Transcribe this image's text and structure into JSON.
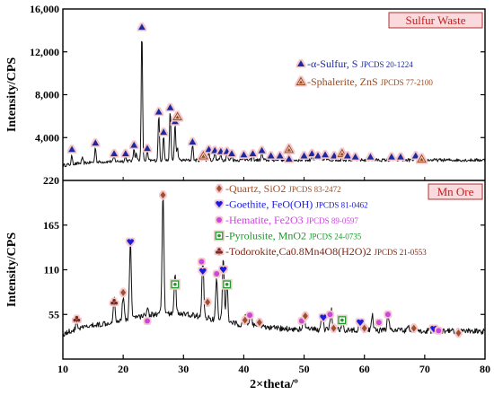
{
  "chart_data": {
    "type": "line",
    "xlabel": "2×theta/º",
    "xlim": [
      10,
      80
    ],
    "x_ticks": [
      "10",
      "20",
      "30",
      "40",
      "50",
      "60",
      "70",
      "80"
    ],
    "panels": [
      {
        "name": "Sulfur Waste",
        "ylabel": "Intensity/CPS",
        "ylim": [
          0,
          16000
        ],
        "y_ticks": [
          "16,000",
          "12,000",
          "8,000",
          "4,000"
        ],
        "baseline": 1900,
        "peaks": [
          {
            "x": 11.5,
            "y": 800
          },
          {
            "x": 13.2,
            "y": 500
          },
          {
            "x": 15.4,
            "y": 1400
          },
          {
            "x": 18.5,
            "y": 400
          },
          {
            "x": 20.4,
            "y": 450
          },
          {
            "x": 21.8,
            "y": 1200
          },
          {
            "x": 22.2,
            "y": 700
          },
          {
            "x": 23.1,
            "y": 12200
          },
          {
            "x": 24.0,
            "y": 900
          },
          {
            "x": 25.9,
            "y": 4300
          },
          {
            "x": 26.7,
            "y": 2400
          },
          {
            "x": 27.8,
            "y": 4700
          },
          {
            "x": 28.6,
            "y": 3500
          },
          {
            "x": 29.0,
            "y": 1200
          },
          {
            "x": 31.5,
            "y": 1500
          },
          {
            "x": 33.3,
            "y": 350
          },
          {
            "x": 34.2,
            "y": 800
          },
          {
            "x": 35.2,
            "y": 700
          },
          {
            "x": 36.2,
            "y": 600
          },
          {
            "x": 37.2,
            "y": 650
          },
          {
            "x": 38.0,
            "y": 500
          },
          {
            "x": 40.0,
            "y": 400
          },
          {
            "x": 41.5,
            "y": 500
          },
          {
            "x": 43.0,
            "y": 700
          },
          {
            "x": 44.5,
            "y": 300
          },
          {
            "x": 46.0,
            "y": 350
          },
          {
            "x": 47.5,
            "y": 900
          },
          {
            "x": 50.0,
            "y": 350
          },
          {
            "x": 51.3,
            "y": 500
          },
          {
            "x": 52.3,
            "y": 350
          },
          {
            "x": 53.5,
            "y": 400
          },
          {
            "x": 55.0,
            "y": 300
          },
          {
            "x": 56.3,
            "y": 400
          },
          {
            "x": 57.2,
            "y": 300
          },
          {
            "x": 58.5,
            "y": 250
          },
          {
            "x": 61.0,
            "y": 250
          },
          {
            "x": 64.5,
            "y": 200
          },
          {
            "x": 66.0,
            "y": 200
          },
          {
            "x": 68.5,
            "y": 250
          },
          {
            "x": 69.5,
            "y": 200
          }
        ],
        "markers": [
          {
            "x": 11.5,
            "y": 2900,
            "symbol": "sulfur"
          },
          {
            "x": 15.4,
            "y": 3500,
            "symbol": "sulfur"
          },
          {
            "x": 18.5,
            "y": 2500,
            "symbol": "sulfur"
          },
          {
            "x": 20.4,
            "y": 2500,
            "symbol": "sulfur"
          },
          {
            "x": 21.8,
            "y": 3300,
            "symbol": "sulfur"
          },
          {
            "x": 23.1,
            "y": 14300,
            "symbol": "sulfur"
          },
          {
            "x": 24.0,
            "y": 3000,
            "symbol": "sulfur"
          },
          {
            "x": 25.9,
            "y": 6400,
            "symbol": "sulfur"
          },
          {
            "x": 26.7,
            "y": 4500,
            "symbol": "sulfur"
          },
          {
            "x": 27.8,
            "y": 6800,
            "symbol": "sulfur"
          },
          {
            "x": 28.6,
            "y": 5500,
            "symbol": "sulfur"
          },
          {
            "x": 29.0,
            "y": 5950,
            "symbol": "sphalerite"
          },
          {
            "x": 31.5,
            "y": 3600,
            "symbol": "sulfur"
          },
          {
            "x": 33.3,
            "y": 2300,
            "symbol": "sphalerite"
          },
          {
            "x": 34.2,
            "y": 2900,
            "symbol": "sulfur"
          },
          {
            "x": 35.2,
            "y": 2800,
            "symbol": "sulfur"
          },
          {
            "x": 36.2,
            "y": 2700,
            "symbol": "sulfur"
          },
          {
            "x": 37.2,
            "y": 2700,
            "symbol": "sulfur"
          },
          {
            "x": 38.0,
            "y": 2500,
            "symbol": "sulfur"
          },
          {
            "x": 40.0,
            "y": 2400,
            "symbol": "sulfur"
          },
          {
            "x": 41.5,
            "y": 2500,
            "symbol": "sulfur"
          },
          {
            "x": 43.0,
            "y": 2800,
            "symbol": "sulfur"
          },
          {
            "x": 44.5,
            "y": 2300,
            "symbol": "sulfur"
          },
          {
            "x": 46.0,
            "y": 2300,
            "symbol": "sulfur"
          },
          {
            "x": 47.5,
            "y": 2900,
            "symbol": "sphalerite"
          },
          {
            "x": 47.5,
            "y": 2000,
            "symbol": "sulfur"
          },
          {
            "x": 50.0,
            "y": 2300,
            "symbol": "sulfur"
          },
          {
            "x": 51.3,
            "y": 2500,
            "symbol": "sulfur"
          },
          {
            "x": 52.3,
            "y": 2300,
            "symbol": "sulfur"
          },
          {
            "x": 53.5,
            "y": 2400,
            "symbol": "sulfur"
          },
          {
            "x": 55.0,
            "y": 2300,
            "symbol": "sulfur"
          },
          {
            "x": 56.3,
            "y": 2500,
            "symbol": "sphalerite"
          },
          {
            "x": 57.2,
            "y": 2300,
            "symbol": "sulfur"
          },
          {
            "x": 58.5,
            "y": 2200,
            "symbol": "sulfur"
          },
          {
            "x": 61.0,
            "y": 2200,
            "symbol": "sulfur"
          },
          {
            "x": 64.5,
            "y": 2200,
            "symbol": "sulfur"
          },
          {
            "x": 66.0,
            "y": 2200,
            "symbol": "sulfur"
          },
          {
            "x": 68.5,
            "y": 2300,
            "symbol": "sulfur"
          },
          {
            "x": 69.5,
            "y": 2000,
            "symbol": "sphalerite"
          }
        ],
        "legend": [
          {
            "symbol": "sulfur",
            "text": "-α-Sulfur, S",
            "jcpds": "JPCDS 20-1224"
          },
          {
            "symbol": "sphalerite",
            "text": "-Sphalerite, ZnS",
            "jcpds": "JPCDS 77-2100"
          }
        ]
      },
      {
        "name": "Mn Ore",
        "ylabel": "Intensity/CPS",
        "ylim": [
          0,
          220
        ],
        "y_ticks": [
          "220",
          "165",
          "110",
          "55"
        ],
        "peaks": [
          {
            "x": 12.3,
            "y": 10
          },
          {
            "x": 18.5,
            "y": 30
          },
          {
            "x": 20.0,
            "y": 28
          },
          {
            "x": 21.2,
            "y": 95
          },
          {
            "x": 24.0,
            "y": 10
          },
          {
            "x": 26.6,
            "y": 145
          },
          {
            "x": 28.6,
            "y": 50
          },
          {
            "x": 33.2,
            "y": 70
          },
          {
            "x": 35.5,
            "y": 50
          },
          {
            "x": 36.6,
            "y": 78
          },
          {
            "x": 37.2,
            "y": 50
          },
          {
            "x": 40.2,
            "y": 12
          },
          {
            "x": 41.2,
            "y": 18
          },
          {
            "x": 42.6,
            "y": 12
          },
          {
            "x": 50.0,
            "y": 18
          },
          {
            "x": 53.0,
            "y": 22
          },
          {
            "x": 54.5,
            "y": 25
          },
          {
            "x": 56.4,
            "y": 12
          },
          {
            "x": 59.2,
            "y": 12
          },
          {
            "x": 61.3,
            "y": 20
          },
          {
            "x": 63.9,
            "y": 25
          },
          {
            "x": 67.2,
            "y": 8
          },
          {
            "x": 72.0,
            "y": 8
          }
        ],
        "markers": [
          {
            "x": 12.3,
            "y": 49,
            "symbol": "todorokite"
          },
          {
            "x": 18.5,
            "y": 70,
            "symbol": "todorokite"
          },
          {
            "x": 20.0,
            "y": 82,
            "symbol": "quartz"
          },
          {
            "x": 21.2,
            "y": 144,
            "symbol": "goethite"
          },
          {
            "x": 24.0,
            "y": 47,
            "symbol": "hematite"
          },
          {
            "x": 26.6,
            "y": 202,
            "symbol": "quartz"
          },
          {
            "x": 28.6,
            "y": 92,
            "symbol": "pyrolusite"
          },
          {
            "x": 33.0,
            "y": 120,
            "symbol": "hematite"
          },
          {
            "x": 33.2,
            "y": 108,
            "symbol": "goethite"
          },
          {
            "x": 34.0,
            "y": 70,
            "symbol": "quartz"
          },
          {
            "x": 35.5,
            "y": 105,
            "symbol": "hematite"
          },
          {
            "x": 36.6,
            "y": 110,
            "symbol": "goethite"
          },
          {
            "x": 37.2,
            "y": 92,
            "symbol": "pyrolusite"
          },
          {
            "x": 40.2,
            "y": 48,
            "symbol": "quartz"
          },
          {
            "x": 41.0,
            "y": 54,
            "symbol": "hematite"
          },
          {
            "x": 42.6,
            "y": 45,
            "symbol": "quartz"
          },
          {
            "x": 49.6,
            "y": 47,
            "symbol": "hematite"
          },
          {
            "x": 50.2,
            "y": 53,
            "symbol": "quartz"
          },
          {
            "x": 53.2,
            "y": 51,
            "symbol": "goethite"
          },
          {
            "x": 54.3,
            "y": 55,
            "symbol": "hematite"
          },
          {
            "x": 54.9,
            "y": 38,
            "symbol": "quartz"
          },
          {
            "x": 56.3,
            "y": 48,
            "symbol": "pyrolusite"
          },
          {
            "x": 59.3,
            "y": 45,
            "symbol": "goethite"
          },
          {
            "x": 60.0,
            "y": 38,
            "symbol": "quartz"
          },
          {
            "x": 62.4,
            "y": 45,
            "symbol": "hematite"
          },
          {
            "x": 63.9,
            "y": 55,
            "symbol": "hematite"
          },
          {
            "x": 68.2,
            "y": 38,
            "symbol": "quartz"
          },
          {
            "x": 71.5,
            "y": 37,
            "symbol": "goethite"
          },
          {
            "x": 72.3,
            "y": 35,
            "symbol": "hematite"
          },
          {
            "x": 75.6,
            "y": 32,
            "symbol": "quartz"
          }
        ],
        "legend": [
          {
            "symbol": "quartz",
            "text": "-Quartz, SiO2",
            "jcpds": "JPCDS 83-2472"
          },
          {
            "symbol": "goethite",
            "text": "-Goethite, FeO(OH)",
            "jcpds": "JPCDS 81-0462"
          },
          {
            "symbol": "hematite",
            "text": "-Hematite, Fe2O3",
            "jcpds": "JPCDS 89-0597"
          },
          {
            "symbol": "pyrolusite",
            "text": "-Pyrolusite, MnO2",
            "jcpds": "JPCDS 24-0735"
          },
          {
            "symbol": "todorokite",
            "text": "-Todorokite,Ca0.8Mn4O8(H2O)2",
            "jcpds": "JPCDS 21-0553"
          }
        ]
      }
    ]
  },
  "colors": {
    "sulfur": "#1f2aa0",
    "sphalerite": "#9a4a22",
    "quartz": "#a0502a",
    "goethite": "#1a1adc",
    "hematite": "#cc44dd",
    "pyrolusite": "#1a9a2a",
    "todorokite": "#7a2a1a",
    "label_fill": "#fadadd",
    "label_border": "#b03030",
    "label_text": "#c02020"
  }
}
